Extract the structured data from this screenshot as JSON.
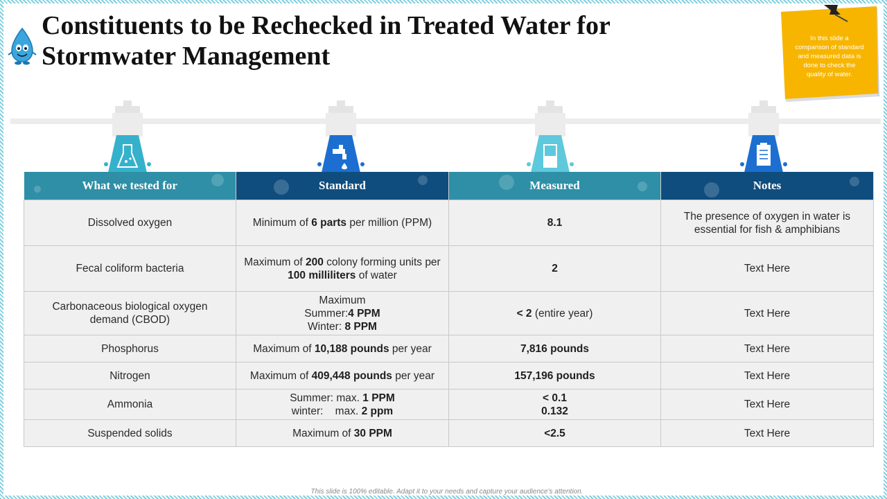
{
  "slide": {
    "title_line1": "Constituents to be Rechecked in Treated Water for",
    "title_line2": "Stormwater Management",
    "note_lines": [
      "In this slide a",
      "comparison of standard",
      "and measured data is",
      "done to check the",
      "quality of water."
    ],
    "footer": "This slide is 100% editable. Adapt it to your needs and capture your audience's attention."
  },
  "colors": {
    "teal": "#2e8fa6",
    "navy": "#0f4d7e",
    "sticky": "#f7b500",
    "pipe": "#e8e8e8",
    "icon_teal": "#36b1cc",
    "icon_blue": "#1c6fd0"
  },
  "icons": [
    "lab-flask-icon",
    "water-tap-icon",
    "measuring-cylinder-icon",
    "notes-clipboard-icon"
  ],
  "table": {
    "headers": [
      "What we tested for",
      "Standard",
      "Measured",
      "Notes"
    ],
    "rows": [
      {
        "test": [
          "Dissolved oxygen"
        ],
        "standard": [
          [
            [
              "Minimum of ",
              false
            ],
            [
              "6 parts",
              true
            ],
            [
              " per million (PPM)",
              false
            ]
          ]
        ],
        "measured": [
          [
            [
              "8.1",
              true
            ]
          ]
        ],
        "notes": [
          "The presence of oxygen in water is",
          "essential for fish & amphibians"
        ]
      },
      {
        "test": [
          "Fecal coliform bacteria"
        ],
        "standard": [
          [
            [
              "Maximum of ",
              false
            ],
            [
              "200",
              true
            ],
            [
              " colony forming units per",
              false
            ]
          ],
          [
            [
              "100 milliliters",
              true
            ],
            [
              " of water",
              false
            ]
          ]
        ],
        "measured": [
          [
            [
              "2",
              true
            ]
          ]
        ],
        "notes": [
          "Text Here"
        ]
      },
      {
        "test": [
          "Carbonaceous biological oxygen",
          "demand (CBOD)"
        ],
        "standard": [
          [
            [
              "Maximum",
              false
            ]
          ],
          [
            [
              "Summer:",
              false
            ],
            [
              "4 PPM",
              true
            ]
          ],
          [
            [
              "Winter: ",
              false
            ],
            [
              "8 PPM",
              true
            ]
          ]
        ],
        "measured": [
          [
            [
              "< 2",
              true
            ],
            [
              " (entire year)",
              false
            ]
          ]
        ],
        "notes": [
          "Text Here"
        ]
      },
      {
        "test": [
          "Phosphorus"
        ],
        "standard": [
          [
            [
              "Maximum of ",
              false
            ],
            [
              "10,188 pounds",
              true
            ],
            [
              " per year",
              false
            ]
          ]
        ],
        "measured": [
          [
            [
              "7,816 pounds",
              true
            ]
          ]
        ],
        "notes": [
          "Text Here"
        ]
      },
      {
        "test": [
          "Nitrogen"
        ],
        "standard": [
          [
            [
              "Maximum of ",
              false
            ],
            [
              "409,448 pounds",
              true
            ],
            [
              " per year",
              false
            ]
          ]
        ],
        "measured": [
          [
            [
              "157,196 pounds",
              true
            ]
          ]
        ],
        "notes": [
          "Text Here"
        ]
      },
      {
        "test": [
          "Ammonia"
        ],
        "standard": [
          [
            [
              "Summer: max. ",
              false
            ],
            [
              "1 PPM",
              true
            ]
          ],
          [
            [
              "winter:    max. ",
              false
            ],
            [
              "2 ppm",
              true
            ]
          ]
        ],
        "measured": [
          [
            [
              "< 0.1",
              true
            ]
          ],
          [
            [
              "0.132",
              true
            ]
          ]
        ],
        "notes": [
          "Text Here"
        ]
      },
      {
        "test": [
          "Suspended solids"
        ],
        "standard": [
          [
            [
              "Maximum of ",
              false
            ],
            [
              "30 PPM",
              true
            ]
          ]
        ],
        "measured": [
          [
            [
              "<2.5",
              true
            ]
          ]
        ],
        "notes": [
          "Text Here"
        ]
      }
    ]
  }
}
